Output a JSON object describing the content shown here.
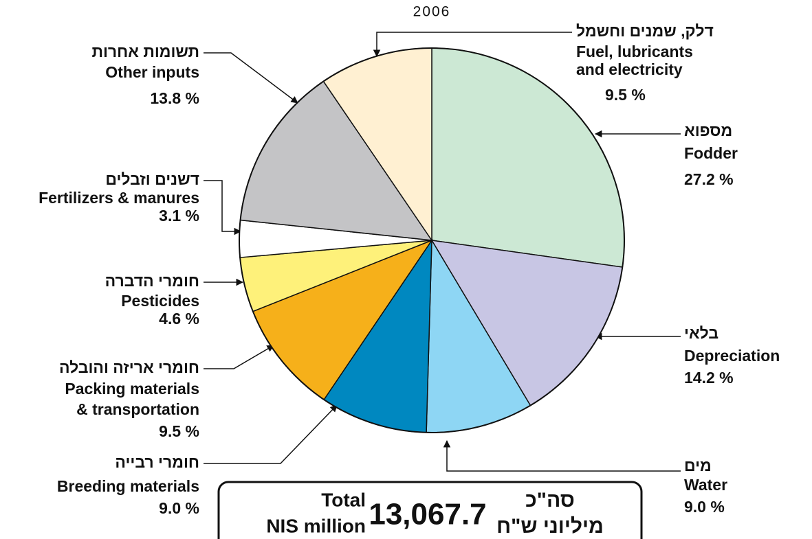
{
  "chart_data": {
    "type": "pie",
    "subtitle": "2006",
    "categories": [
      [
        "Fodder"
      ],
      [
        "Depreciation"
      ],
      [
        "Water"
      ],
      [
        "Breeding materials"
      ],
      [
        "Packing materials",
        "& transportation"
      ],
      [
        "Pesticides"
      ],
      [
        "Fertilizers & manures"
      ],
      [
        "Other inputs"
      ],
      [
        "Fuel, lubricants",
        "and electricity"
      ]
    ],
    "hebrew_labels": [
      "מספוא",
      "בלאי",
      "מים",
      "חומרי רבייה",
      "חומרי אריזה והובלה",
      "חומרי הדברה",
      "דשנים וזבלים",
      "תשומות אחרות",
      "דלק, שמנים וחשמל"
    ],
    "values": [
      27.2,
      14.2,
      9.0,
      9.0,
      9.5,
      4.6,
      3.1,
      13.8,
      9.5
    ],
    "value_labels": [
      "27.2 %",
      "14.2 %",
      "9.0 %",
      "9.0 %",
      "9.5 %",
      "4.6 %",
      "3.1 %",
      "13.8 %",
      "9.5 %"
    ],
    "colors": [
      "#cce8d4",
      "#c8c6e4",
      "#8ed6f4",
      "#0088c0",
      "#f6b01a",
      "#fef17a",
      "#ffffff",
      "#c4c4c6",
      "#fff0d2"
    ],
    "total": {
      "english": [
        "Total",
        "NIS million"
      ],
      "value": "13,067.7",
      "hebrew": [
        "סה\"כ",
        "מיליוני ש\"ח"
      ]
    }
  }
}
